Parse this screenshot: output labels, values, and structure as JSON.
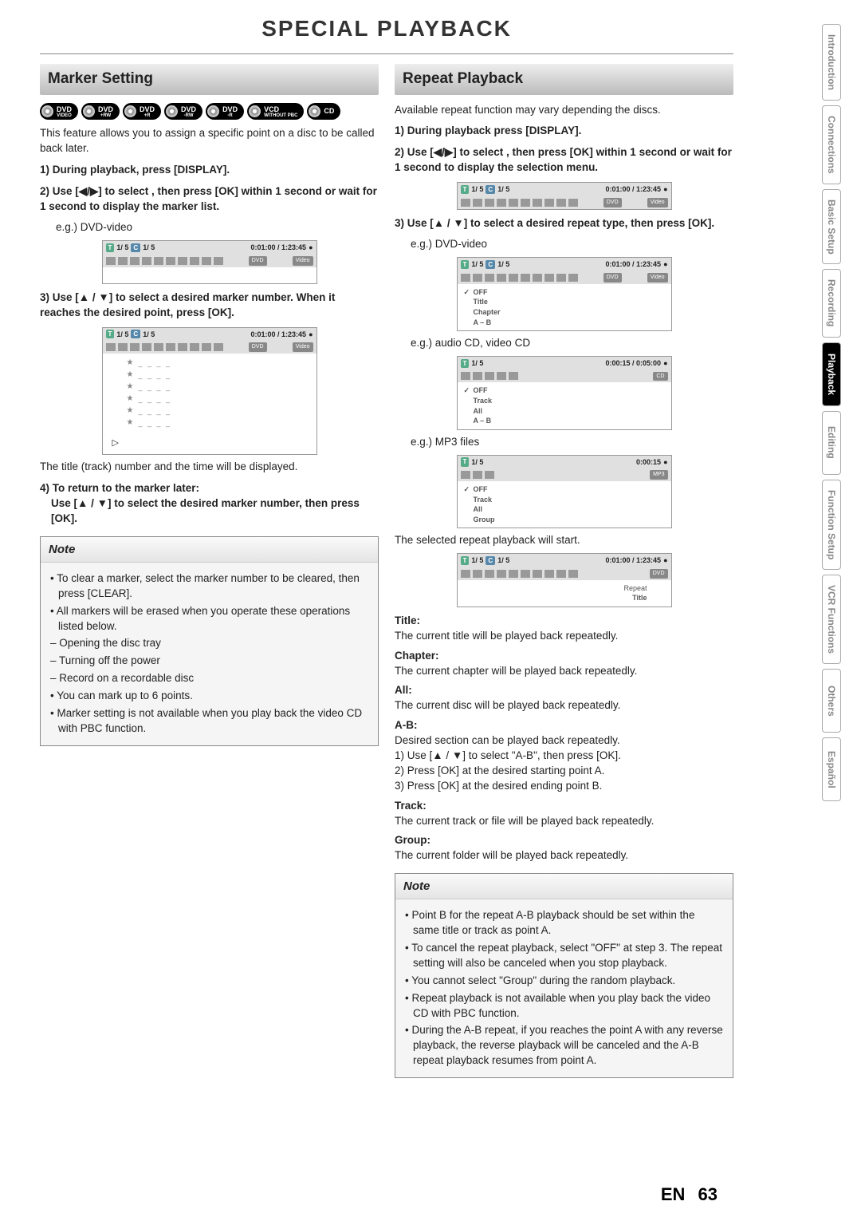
{
  "page_title": "SPECIAL PLAYBACK",
  "sidebar": [
    "Introduction",
    "Connections",
    "Basic Setup",
    "Recording",
    "Playback",
    "Editing",
    "Function Setup",
    "VCR Functions",
    "Others",
    "Español"
  ],
  "active_tab": "Playback",
  "footer": {
    "lang": "EN",
    "page": "63"
  },
  "marker": {
    "header": "Marker Setting",
    "discs": [
      {
        "main": "DVD",
        "sub": "VIDEO"
      },
      {
        "main": "DVD",
        "sub": "+RW"
      },
      {
        "main": "DVD",
        "sub": "+R"
      },
      {
        "main": "DVD",
        "sub": "-RW"
      },
      {
        "main": "DVD",
        "sub": "-R"
      },
      {
        "main": "VCD",
        "sub": "WITHOUT PBC"
      },
      {
        "main": "CD",
        "sub": ""
      }
    ],
    "intro": "This feature allows you to assign a specific point on a disc to be called back later.",
    "step1": "1) During playback, press [DISPLAY].",
    "step2": "2) Use [◀/▶] to select , then press [OK] within 1 second or wait for 1 second to display the marker list.",
    "eg1": "e.g.) DVD-video",
    "step3": "3) Use [▲ / ▼] to select a desired marker number. When it reaches the desired point, press [OK].",
    "after3": "The title (track) number and the time will be displayed.",
    "step4a": "4) To return to the marker later:",
    "step4b": "Use [▲ / ▼] to select the desired marker number, then press [OK].",
    "note": {
      "title": "Note",
      "items": [
        "To clear a marker, select the marker number to be cleared, then press [CLEAR].",
        "All markers will be erased when you operate these operations listed below.",
        "Opening the disc tray",
        "Turning off the power",
        "Record on a recordable disc",
        "You can mark up to 6 points.",
        "Marker setting is not available when you play back the video CD with PBC function."
      ],
      "dash_indices": [
        2,
        3,
        4
      ]
    },
    "osd": {
      "tc": "1/ 5",
      "cc": "1/ 5",
      "time": "0:01:00 / 1:23:45",
      "fmt1": "DVD",
      "fmt2": "Video"
    }
  },
  "repeat": {
    "header": "Repeat Playback",
    "intro": "Available repeat function may vary depending the discs.",
    "step1": "1) During playback press [DISPLAY].",
    "step2": "2) Use [◀/▶] to select , then press [OK] within 1 second or wait for 1 second to display the selection menu.",
    "step3": "3) Use [▲ / ▼] to select a desired repeat type, then press [OK].",
    "eg_dvd": "e.g.) DVD-video",
    "eg_cd": "e.g.) audio CD, video CD",
    "eg_mp3": "e.g.) MP3 files",
    "osd_dvd_opts": [
      "OFF",
      "Title",
      "Chapter",
      "A – B"
    ],
    "osd_cd": {
      "tc": "1/ 5",
      "time": "0:00:15 / 0:05:00",
      "fmt": "CD",
      "opts": [
        "OFF",
        "Track",
        "All",
        "A – B"
      ]
    },
    "osd_mp3": {
      "tc": "1/ 5",
      "time": "0:00:15",
      "fmt": "MP3",
      "opts": [
        "OFF",
        "Track",
        "All",
        "Group"
      ]
    },
    "after": "The selected repeat playback will start.",
    "osd_final": {
      "fmt": "DVD",
      "line1": "Repeat",
      "line2": "Title"
    },
    "defs": [
      {
        "t": "Title:",
        "d": "The current title will be played back repeatedly."
      },
      {
        "t": "Chapter:",
        "d": "The current chapter will be played back repeatedly."
      },
      {
        "t": "All:",
        "d": "The current disc will be played back repeatedly."
      },
      {
        "t": "A-B:",
        "d": "Desired section can be played back repeatedly.\n1) Use [▲ / ▼] to select \"A-B\", then press [OK].\n2) Press [OK] at the desired starting point A.\n3) Press [OK] at the desired ending point B."
      },
      {
        "t": "Track:",
        "d": "The current track or file will be played back repeatedly."
      },
      {
        "t": "Group:",
        "d": "The current folder will be played back repeatedly."
      }
    ],
    "note": {
      "title": "Note",
      "items": [
        "Point B for the repeat A-B playback should be set within the same title or track as point A.",
        "To cancel the repeat playback, select \"OFF\" at step 3. The repeat setting will also be canceled when you stop playback.",
        "You cannot select \"Group\" during the random playback.",
        "Repeat playback is not available when you play back the video CD with PBC function.",
        "During the A-B repeat, if you reaches the point A with any reverse playback, the reverse playback will be canceled and the A-B repeat playback resumes from point A."
      ]
    }
  }
}
